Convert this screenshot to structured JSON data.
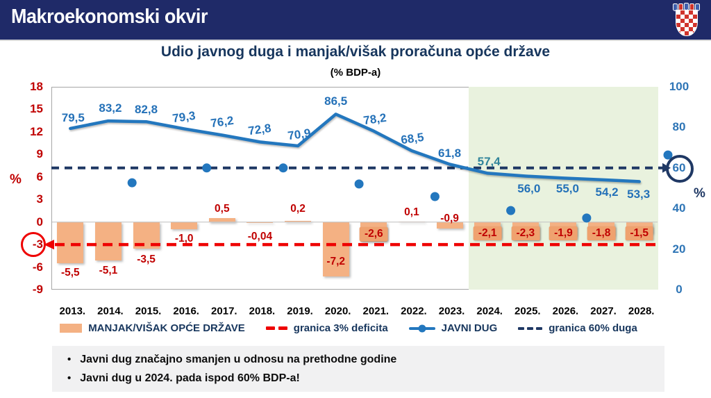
{
  "header": {
    "title": "Makroekonomski okvir"
  },
  "chart": {
    "title": "Udio javnog duga i manjak/višak proračuna opće države",
    "subtitle": "(% BDP-a)"
  },
  "chart_data": {
    "type": "combo_bar_line",
    "title": "Udio javnog duga i manjak/višak proračuna opće države",
    "subtitle": "(% BDP-a)",
    "categories": [
      "2013.",
      "2014.",
      "2015.",
      "2016.",
      "2017.",
      "2018.",
      "2019.",
      "2020.",
      "2021.",
      "2022.",
      "2023.",
      "2024.",
      "2025.",
      "2026.",
      "2027.",
      "2028."
    ],
    "series": [
      {
        "name": "MANJAK/VIŠAK OPĆE DRŽAVE",
        "type": "bar",
        "axis": "left",
        "color": "#F4B183",
        "values": [
          -5.5,
          -5.1,
          -3.5,
          -1.0,
          0.5,
          -0.04,
          0.2,
          -7.2,
          -2.6,
          0.1,
          -0.9,
          -2.1,
          -2.3,
          -1.9,
          -1.8,
          -1.5
        ],
        "labels": [
          "-5,5",
          "-5,1",
          "-3,5",
          "-1,0",
          "0,5",
          "-0,04",
          "0,2",
          "-7,2",
          "-2,6",
          "0,1",
          "-0,9",
          "-2,1",
          "-2,3",
          "-1,9",
          "-1,8",
          "-1,5"
        ]
      },
      {
        "name": "JAVNI DUG",
        "type": "line",
        "axis": "right",
        "color": "#2377BE",
        "values": [
          79.5,
          83.2,
          82.8,
          79.3,
          76.2,
          72.8,
          70.9,
          86.5,
          78.2,
          68.5,
          61.8,
          57.4,
          56.0,
          55.0,
          54.2,
          53.3
        ],
        "labels": [
          "79,5",
          "83,2",
          "82,8",
          "79,3",
          "76,2",
          "72,8",
          "70,9",
          "86,5",
          "78,2",
          "68,5",
          "61,8",
          "57,4",
          "56,0",
          "55,0",
          "54,2",
          "53,3"
        ]
      }
    ],
    "reference_lines": [
      {
        "name": "granica 3% deficita",
        "axis": "left",
        "value": -3,
        "color": "#EE0000",
        "style": "dashed",
        "circled_tick": "-3"
      },
      {
        "name": "granica 60% duga",
        "axis": "right",
        "value": 60,
        "color": "#1F3864",
        "style": "dashed",
        "circled_tick": "60"
      }
    ],
    "left_axis": {
      "label": "%",
      "ticks": [
        "18",
        "15",
        "12",
        "9",
        "6",
        "3",
        "0",
        "-3",
        "-6",
        "-9"
      ],
      "min": -9,
      "max": 18,
      "color": "#C00000"
    },
    "right_axis": {
      "label": "%",
      "ticks": [
        "100",
        "80",
        "60",
        "40",
        "20",
        "0"
      ],
      "min": 0,
      "max": 100,
      "color": "#2E75B6"
    },
    "projection_region": {
      "from_category": "2024.",
      "color": "#E9F2DE"
    },
    "unlabeled_dots_right_axis": [
      {
        "x_frac": 0.133,
        "value": 52.7
      },
      {
        "x_frac": 0.256,
        "value": 60.0
      },
      {
        "x_frac": 0.382,
        "value": 60.0
      },
      {
        "x_frac": 0.507,
        "value": 52.1
      },
      {
        "x_frac": 0.632,
        "value": 45.9
      },
      {
        "x_frac": 0.757,
        "value": 39.0
      },
      {
        "x_frac": 0.882,
        "value": 35.3
      },
      {
        "x_frac": 1.016,
        "value": 66.4
      }
    ],
    "legend_position": "bottom",
    "grid": "zero-line-only"
  },
  "legend": [
    {
      "label": "MANJAK/VIŠAK OPĆE DRŽAVE",
      "marker": "bar-swatch"
    },
    {
      "label": "granica 3% deficita",
      "marker": "red-dashes"
    },
    {
      "label": "JAVNI DUG",
      "marker": "blue-line-dot"
    },
    {
      "label": "granica 60% duga",
      "marker": "navy-dashes"
    }
  ],
  "notes": {
    "bullet": "•",
    "items": [
      "Javni dug značajno smanjen u odnosu na prethodne godine",
      "Javni dug u 2024. pada ispod 60% BDP-a!"
    ]
  }
}
